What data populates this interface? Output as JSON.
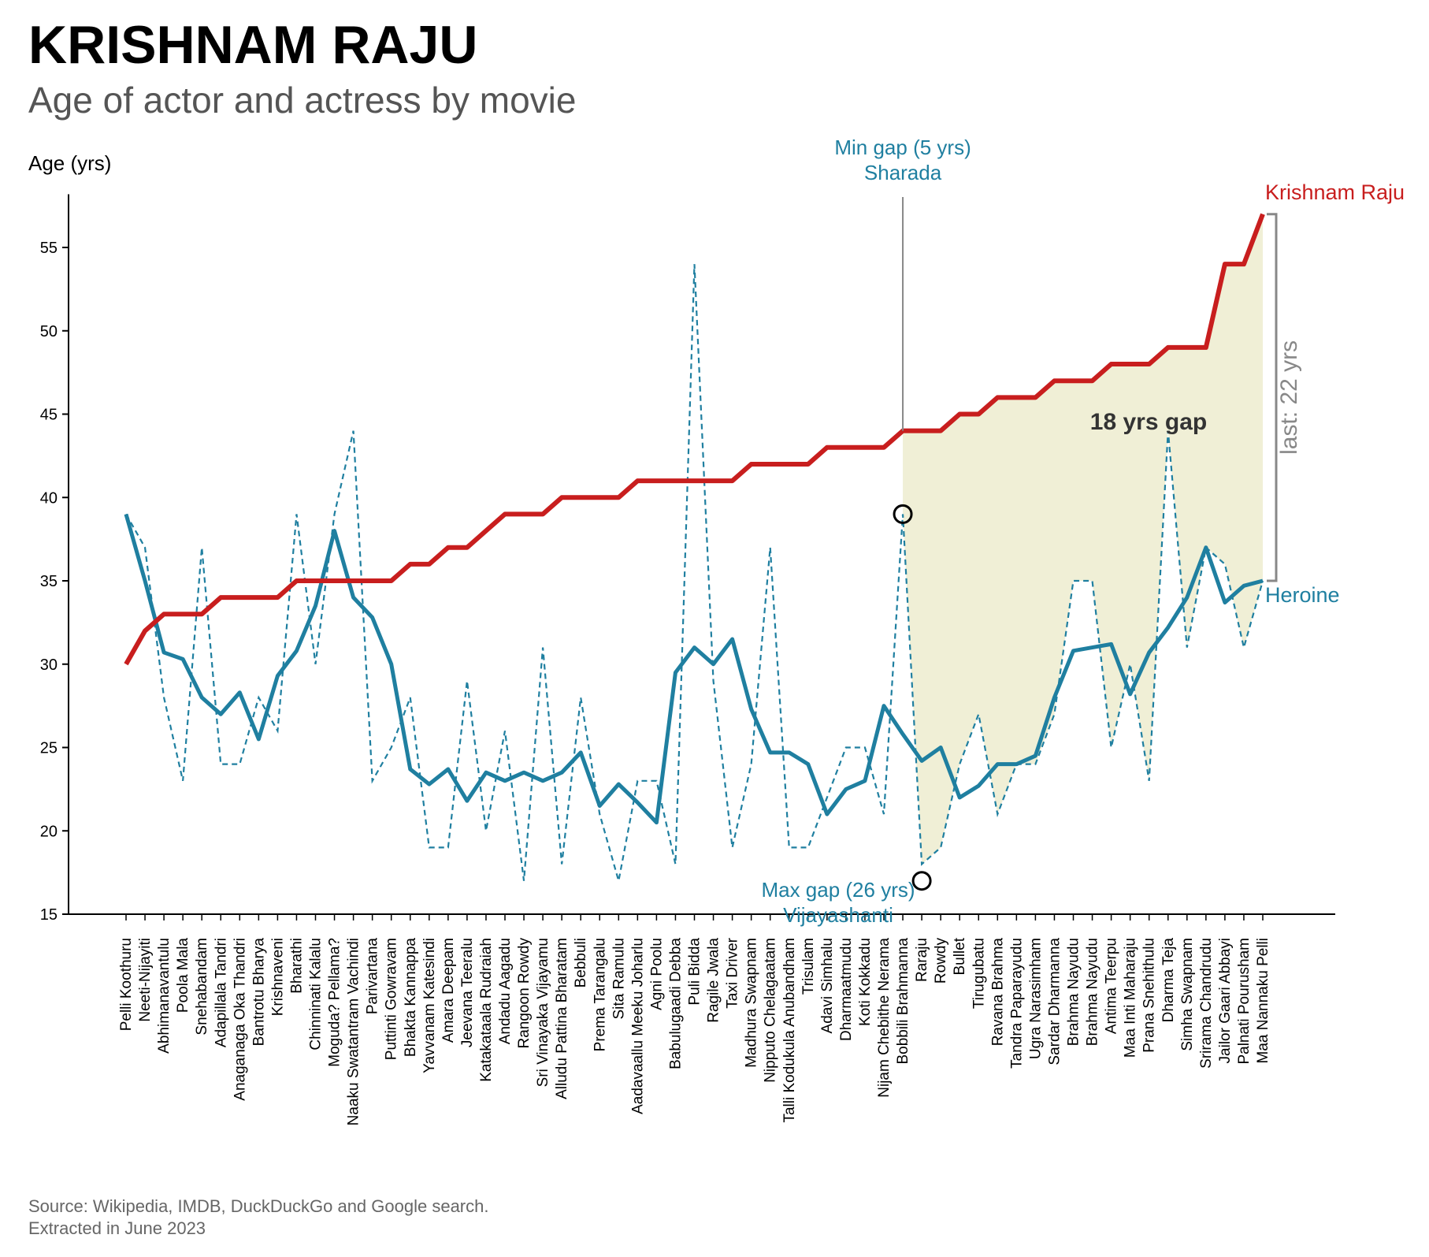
{
  "header": {
    "title": "KRISHNAM RAJU",
    "subtitle": "Age of actor and actress by movie"
  },
  "footer": {
    "source": "Source: Wikipedia, IMDB, DuckDuckGo and Google search.",
    "extracted": "Extracted in June 2023"
  },
  "colors": {
    "actor": "#c81e1e",
    "heroine": "#1f7fa0",
    "gap_fill": "#f0efd6",
    "axis": "#000000",
    "annotation_gray": "#888888"
  },
  "chart_data": {
    "type": "line",
    "ylabel": "Age (yrs)",
    "ylim": [
      15,
      58
    ],
    "yticks": [
      15,
      20,
      25,
      30,
      35,
      40,
      45,
      50,
      55
    ],
    "categories": [
      "Pelli Koothuru",
      "Neeti-Nijayiti",
      "Abhimanavantulu",
      "Poola Mala",
      "Snehabandam",
      "Adapillala Tandri",
      "Anaganaga Oka Thandri",
      "Bantrotu Bharya",
      "Krishnaveni",
      "Bharathi",
      "Chinninati Kalalu",
      "Moguda? Pellama?",
      "Naaku Swatantram Vachindi",
      "Parivartana",
      "Puttinti Gowravam",
      "Bhakta Kannappa",
      "Yavvanam Katesindi",
      "Amara Deepam",
      "Jeevana Teeralu",
      "Katakataala Rudraiah",
      "Andadu Aagadu",
      "Rangoon Rowdy",
      "Sri Vinayaka Vijayamu",
      "Alludu Pattina Bharatam",
      "Bebbuli",
      "Prema Tarangalu",
      "Sita Ramulu",
      "Aadavaallu Meeku Joharlu",
      "Agni Poolu",
      "Babulugaadi Debba",
      "Puli Bidda",
      "Ragile Jwala",
      "Taxi Driver",
      "Madhura Swapnam",
      "Nipputo Chelagaatam",
      "Talli Kodukula Anubandham",
      "Trisulam",
      "Adavi Simhalu",
      "Dharmaatmudu",
      "Koti Kokkadu",
      "Nijam Chebithe Nerama",
      "Bobbili Brahmanna",
      "Raraju",
      "Rowdy",
      "Bullet",
      "Tirugubatu",
      "Ravana Brahma",
      "Tandra Paparayudu",
      "Ugra Narasimham",
      "Sardar Dharmanna",
      "Brahma Nayudu",
      "Brahma Nayudu",
      "Antima Teerpu",
      "Maa Inti Maharaju",
      "Prana Snehithulu",
      "Dharma Teja",
      "Simha Swapnam",
      "Srirama Chandrudu",
      "Jailor Gaari Abbayi",
      "Palnati Pourusham",
      "Maa Nannaku Pelli"
    ],
    "series": [
      {
        "name": "Krishnam Raju",
        "style": "solid",
        "values": [
          30,
          32,
          33,
          33,
          33,
          34,
          34,
          34,
          34,
          35,
          35,
          35,
          35,
          35,
          35,
          36,
          36,
          37,
          37,
          38,
          39,
          39,
          39,
          40,
          40,
          40,
          40,
          41,
          41,
          41,
          41,
          41,
          41,
          42,
          42,
          42,
          42,
          43,
          43,
          43,
          43,
          44,
          44,
          44,
          45,
          45,
          46,
          46,
          46,
          47,
          47,
          47,
          48,
          48,
          48,
          49,
          49,
          49,
          54,
          54,
          57
        ]
      },
      {
        "name": "Heroine",
        "style": "smoothed",
        "values": [
          39,
          35,
          30.7,
          30.3,
          28,
          27,
          28.3,
          25.5,
          29.3,
          30.8,
          33.5,
          38,
          34,
          32.8,
          30,
          23.7,
          22.8,
          23.7,
          21.8,
          23.5,
          23,
          23.5,
          23,
          23.5,
          24.7,
          21.5,
          22.8,
          21.7,
          20.5,
          29.5,
          31,
          30,
          31.5,
          27.3,
          24.7,
          24.7,
          24,
          21,
          22.5,
          23,
          27.5,
          25.8,
          24.2,
          25,
          22,
          22.7,
          24,
          24,
          24.5,
          28,
          30.8,
          31,
          31.2,
          28.2,
          30.7,
          32.2,
          34,
          37,
          33.7,
          34.7,
          35
        ]
      },
      {
        "name": "Heroine (actual)",
        "style": "dashed",
        "values": [
          39,
          37,
          28,
          23,
          37,
          24,
          24,
          28,
          26,
          39,
          30,
          39,
          44,
          23,
          25,
          28,
          19,
          19,
          29,
          20,
          26,
          17,
          31,
          18,
          28,
          21,
          17,
          23,
          23,
          18,
          54,
          29,
          19,
          24,
          37,
          19,
          19,
          22,
          25,
          25,
          21,
          39,
          18,
          19,
          24,
          27,
          21,
          24,
          24,
          27,
          35,
          35,
          25,
          30,
          23,
          44,
          31,
          37,
          36,
          31,
          35
        ]
      }
    ],
    "annotations": {
      "min_gap_line1": "Min gap (5 yrs)",
      "min_gap_line2": "Sharada",
      "max_gap_line1": "Max gap (26 yrs)",
      "max_gap_line2": "Vijayashanti",
      "gap_label": "18 yrs gap",
      "last_label": "last: 22 yrs",
      "actor_label": "Krishnam Raju",
      "heroine_label": "Heroine"
    }
  }
}
